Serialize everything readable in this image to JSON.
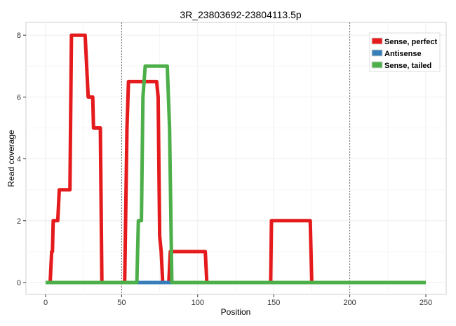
{
  "chart_data": {
    "type": "line",
    "title": "3R_23803692-23804113.5p",
    "xlabel": "Position",
    "ylabel": "Read coverage",
    "xlim": [
      -12,
      262
    ],
    "ylim": [
      -0.4,
      8.4
    ],
    "xticks": [
      0,
      50,
      100,
      150,
      200,
      250
    ],
    "yticks": [
      0,
      2,
      4,
      6,
      8
    ],
    "vlines": [
      50,
      200
    ],
    "grid": true,
    "legend_position": "top-right",
    "series": [
      {
        "name": "Sense, perfect",
        "color": "#e41a1c",
        "points": [
          [
            0,
            0
          ],
          [
            3,
            0
          ],
          [
            4,
            1
          ],
          [
            4.5,
            1
          ],
          [
            5,
            2
          ],
          [
            8,
            2
          ],
          [
            9,
            3
          ],
          [
            16,
            3
          ],
          [
            17,
            8
          ],
          [
            26,
            8
          ],
          [
            28,
            6
          ],
          [
            31,
            6
          ],
          [
            31.5,
            5
          ],
          [
            36,
            5
          ],
          [
            37,
            0
          ],
          [
            52,
            0
          ],
          [
            53.5,
            5
          ],
          [
            54.5,
            6.5
          ],
          [
            73,
            6.5
          ],
          [
            74,
            6
          ],
          [
            75,
            1.5
          ],
          [
            76,
            1
          ],
          [
            77,
            0
          ],
          [
            81,
            0
          ],
          [
            82,
            1
          ],
          [
            105,
            1
          ],
          [
            106,
            0
          ],
          [
            148,
            0
          ],
          [
            148.5,
            2
          ],
          [
            174,
            2
          ],
          [
            175,
            0
          ],
          [
            250,
            0
          ]
        ]
      },
      {
        "name": "Antisense",
        "color": "#377eb8",
        "points": [
          [
            0,
            0
          ],
          [
            250,
            0
          ]
        ]
      },
      {
        "name": "Sense, tailed",
        "color": "#4daf4a",
        "points": [
          [
            0,
            0
          ],
          [
            60,
            0
          ],
          [
            61,
            2
          ],
          [
            63,
            2
          ],
          [
            64,
            6
          ],
          [
            65.5,
            7
          ],
          [
            80,
            7
          ],
          [
            81.5,
            5
          ],
          [
            83,
            0
          ],
          [
            250,
            0
          ]
        ]
      }
    ]
  }
}
